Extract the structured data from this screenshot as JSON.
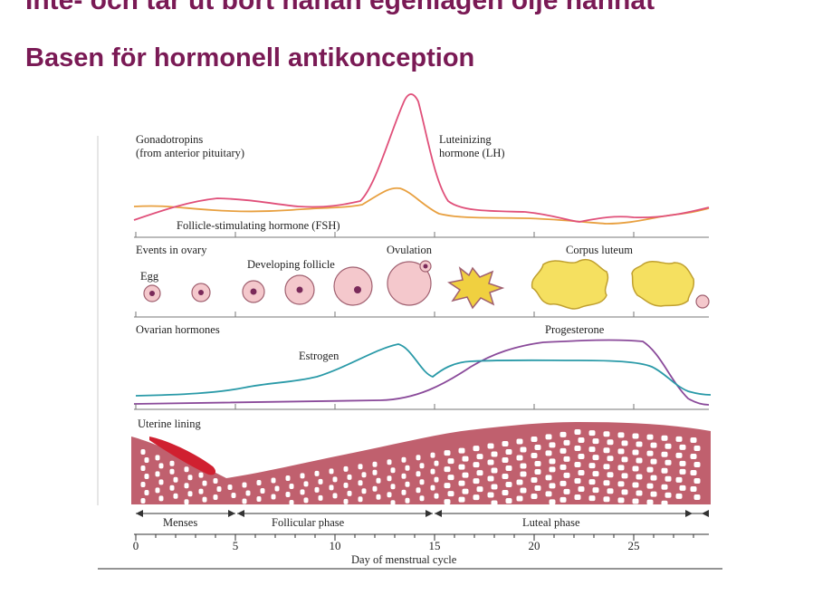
{
  "slide": {
    "cut_title": "Inte- och tar ut bort hanan egenlagen olje hannat",
    "title": "Basen för hormonell antikonception"
  },
  "figure": {
    "gonadotropins_label_1": "Gonadotropins",
    "gonadotropins_label_2": "(from anterior pituitary)",
    "lh_label_1": "Luteinizing",
    "lh_label_2": "hormone (LH)",
    "fsh_label": "Follicle-stimulating hormone (FSH)",
    "ovary_label": "Events in ovary",
    "egg_label": "Egg",
    "developing_label": "Developing follicle",
    "ovulation_label": "Ovulation",
    "corpus_label": "Corpus luteum",
    "ovarian_label": "Ovarian hormones",
    "estrogen_label": "Estrogen",
    "progesterone_label": "Progesterone",
    "uterine_label": "Uterine lining",
    "menses_label": "Menses",
    "follicular_label": "Follicular phase",
    "luteal_label": "Luteal phase",
    "xaxis_label": "Day of menstrual cycle",
    "day_ticks": [
      "0",
      "5",
      "10",
      "15",
      "20",
      "25"
    ],
    "colors": {
      "lh": "#e0507a",
      "fsh": "#e8a040",
      "estrogen": "#2a9aa8",
      "progesterone": "#8a4a9a",
      "lining": "#c0606e",
      "menses": "#d02030",
      "title": "#7a1a55"
    }
  }
}
